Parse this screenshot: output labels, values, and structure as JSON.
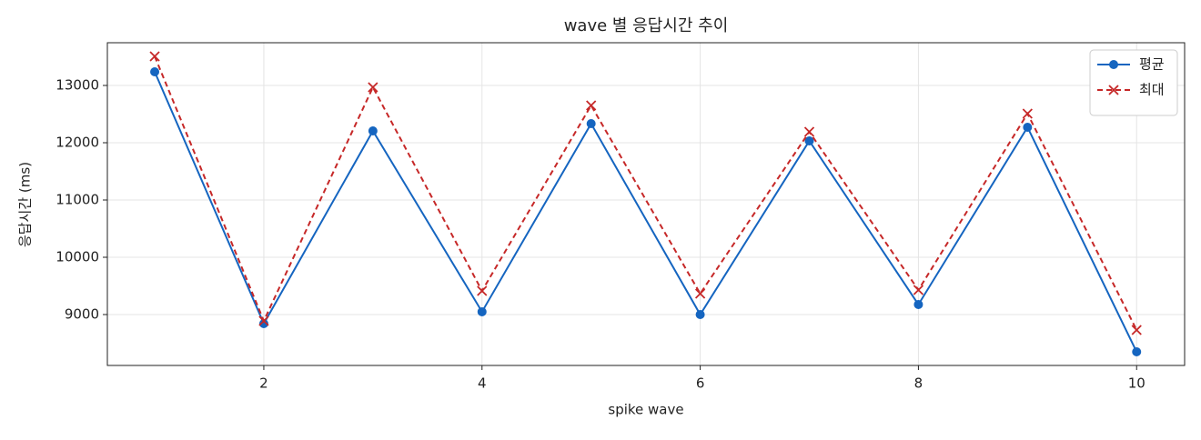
{
  "chart_data": {
    "type": "line",
    "title": "wave 별 응답시간 추이",
    "xlabel": "spike wave",
    "ylabel": "응답시간 (ms)",
    "x": [
      1,
      2,
      3,
      4,
      5,
      6,
      7,
      8,
      9,
      10
    ],
    "series": [
      {
        "name": "평균",
        "color": "#1565c0",
        "marker": "circle",
        "dash": "solid",
        "values": [
          13238,
          8841,
          12206,
          9048,
          12333,
          9000,
          12032,
          9175,
          12270,
          8349
        ]
      },
      {
        "name": "최대",
        "color": "#c62828",
        "marker": "x",
        "dash": "dashed",
        "values": [
          13508,
          8889,
          12968,
          9413,
          12651,
          9365,
          12190,
          9429,
          12508,
          8730
        ]
      }
    ],
    "xlim": [
      0.566,
      10.44
    ],
    "ylim": [
      8111,
      13746
    ],
    "xticks": [
      2,
      4,
      6,
      8,
      10
    ],
    "yticks": [
      9000,
      10000,
      11000,
      12000,
      13000
    ],
    "grid": true,
    "legend": "upper right"
  }
}
